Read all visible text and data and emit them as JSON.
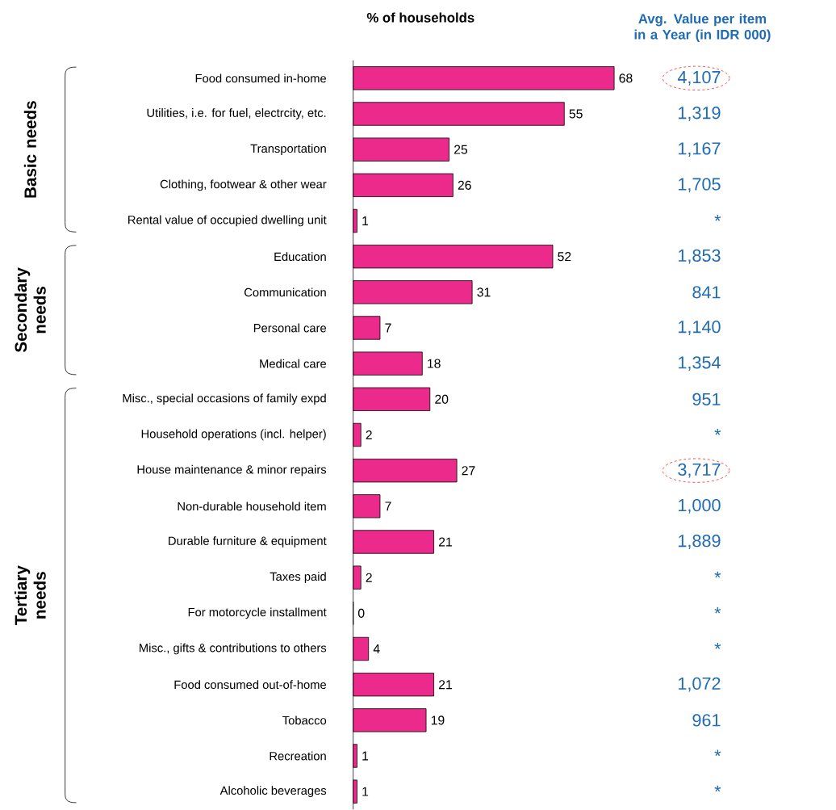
{
  "chart_data": {
    "type": "bar",
    "orientation": "horizontal",
    "xlabel": "% of households",
    "color": "#ec2a8c",
    "data_labels": true,
    "categories": [
      "Food consumed in-home",
      "Utilities, i.e. for fuel, electrcity, etc.",
      "Transportation",
      "Clothing, footwear & other wear",
      "Rental value of occupied dwelling unit",
      "Education",
      "Communication",
      "Personal care",
      "Medical care",
      "Misc., special occasions of family expd",
      "Household operations (incl. helper)",
      "House maintenance & minor repairs",
      "Non-durable household item",
      "Durable furniture & equipment",
      "Taxes paid",
      "For motorcycle installment",
      "Misc., gifts & contributions to others",
      "Food consumed out-of-home",
      "Tobacco",
      "Recreation",
      "Alcoholic beverages"
    ],
    "values": [
      68,
      55,
      25,
      26,
      1,
      52,
      31,
      7,
      18,
      20,
      2,
      27,
      7,
      21,
      2,
      0,
      4,
      21,
      19,
      1,
      1
    ],
    "annotations": [
      "Avg. Value per item in a Year (in IDR 000)",
      "Basic needs",
      "Secondary needs",
      "Tertiary needs",
      "4,107",
      "1,319",
      "1,167",
      "1,705",
      "*",
      "1,853",
      "841",
      "1,140",
      "1,354",
      "951",
      "*",
      "3,717",
      "1,000",
      "1,889",
      "*",
      "*",
      "*",
      "1,072",
      "961",
      "*",
      "*"
    ]
  }
}
